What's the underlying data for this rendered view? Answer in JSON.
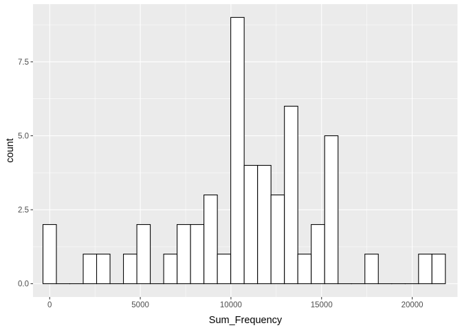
{
  "chart_data": {
    "type": "bar",
    "subtype": "histogram",
    "title": "",
    "xlabel": "Sum_Frequency",
    "ylabel": "count",
    "bin_width": 740,
    "xlim": [
      -920,
      22520
    ],
    "ylim": [
      -0.45,
      9.45
    ],
    "x_ticks": [
      0,
      5000,
      10000,
      15000,
      20000
    ],
    "x_tick_labels": [
      "0",
      "5000",
      "10000",
      "15000",
      "20000"
    ],
    "y_ticks": [
      0,
      2.5,
      5,
      7.5
    ],
    "y_tick_labels": [
      "0.0",
      "2.5",
      "5.0",
      "7.5"
    ],
    "x": [
      0,
      740,
      1480,
      2220,
      2960,
      3700,
      4440,
      5180,
      5920,
      6660,
      7400,
      8140,
      8880,
      9620,
      10360,
      11100,
      11840,
      12580,
      13320,
      14060,
      14800,
      15540,
      16280,
      17020,
      17760,
      18500,
      19240,
      19980,
      20720,
      21460
    ],
    "values": [
      2,
      0,
      0,
      1,
      1,
      0,
      1,
      2,
      0,
      1,
      2,
      2,
      3,
      1,
      9,
      4,
      4,
      3,
      6,
      1,
      2,
      5,
      0,
      0,
      1,
      0,
      0,
      0,
      1,
      1
    ],
    "grid": true,
    "colors": {
      "panel": "#ebebeb",
      "grid": "#ffffff",
      "bar_fill": "#ffffff",
      "bar_stroke": "#000000",
      "tick_label": "#4d4d4d"
    }
  }
}
